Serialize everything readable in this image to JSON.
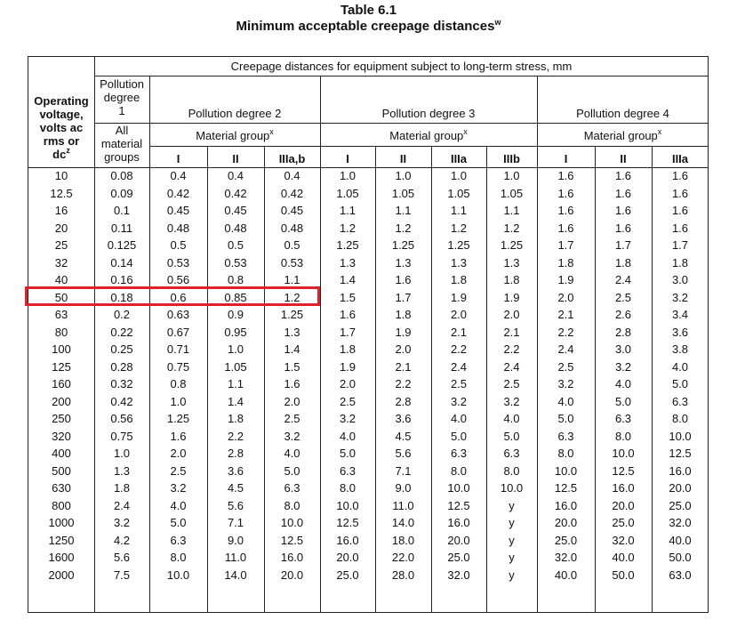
{
  "title": "Table 6.1",
  "subtitle": "Minimum acceptable creepage distances",
  "subtitle_sup": "w",
  "header": {
    "super": "Creepage distances for equipment subject to long-term stress, mm",
    "operating_voltage": [
      "Operating",
      "voltage,",
      "volts ac",
      "rms or",
      "dc"
    ],
    "operating_voltage_sup": "z",
    "pd1": [
      "Pollution",
      "degree",
      "1"
    ],
    "pd1_sub": [
      "All",
      "material",
      "groups"
    ],
    "pd2": "Pollution degree 2",
    "pd3": "Pollution degree 3",
    "pd4": "Pollution degree 4",
    "material_group": "Material group",
    "material_group_sup": "x",
    "pd2_cols": [
      "I",
      "II",
      "IIIa,b"
    ],
    "pd3_cols": [
      "I",
      "II",
      "IIIa",
      "IIIb"
    ],
    "pd4_cols": [
      "I",
      "II",
      "IIIa"
    ]
  },
  "rows": [
    [
      "10",
      "0.08",
      "0.4",
      "0.4",
      "0.4",
      "1.0",
      "1.0",
      "1.0",
      "1.0",
      "1.6",
      "1.6",
      "1.6"
    ],
    [
      "12.5",
      "0.09",
      "0.42",
      "0.42",
      "0.42",
      "1.05",
      "1.05",
      "1.05",
      "1.05",
      "1.6",
      "1.6",
      "1.6"
    ],
    [
      "16",
      "0.1",
      "0.45",
      "0.45",
      "0.45",
      "1.1",
      "1.1",
      "1.1",
      "1.1",
      "1.6",
      "1.6",
      "1.6"
    ],
    [
      "20",
      "0.11",
      "0.48",
      "0.48",
      "0.48",
      "1.2",
      "1.2",
      "1.2",
      "1.2",
      "1.6",
      "1.6",
      "1.6"
    ],
    [
      "25",
      "0.125",
      "0.5",
      "0.5",
      "0.5",
      "1.25",
      "1.25",
      "1.25",
      "1.25",
      "1.7",
      "1.7",
      "1.7"
    ],
    [
      "32",
      "0.14",
      "0.53",
      "0.53",
      "0.53",
      "1.3",
      "1.3",
      "1.3",
      "1.3",
      "1.8",
      "1.8",
      "1.8"
    ],
    [
      "40",
      "0.16",
      "0.56",
      "0.8",
      "1.1",
      "1.4",
      "1.6",
      "1.8",
      "1.8",
      "1.9",
      "2.4",
      "3.0"
    ],
    [
      "50",
      "0.18",
      "0.6",
      "0.85",
      "1.2",
      "1.5",
      "1.7",
      "1.9",
      "1.9",
      "2.0",
      "2.5",
      "3.2"
    ],
    [
      "63",
      "0.2",
      "0.63",
      "0.9",
      "1.25",
      "1.6",
      "1.8",
      "2.0",
      "2.0",
      "2.1",
      "2.6",
      "3.4"
    ],
    [
      "80",
      "0.22",
      "0.67",
      "0.95",
      "1.3",
      "1.7",
      "1.9",
      "2.1",
      "2.1",
      "2.2",
      "2.8",
      "3.6"
    ],
    [
      "100",
      "0.25",
      "0.71",
      "1.0",
      "1.4",
      "1.8",
      "2.0",
      "2.2",
      "2.2",
      "2.4",
      "3.0",
      "3.8"
    ],
    [
      "125",
      "0.28",
      "0.75",
      "1.05",
      "1.5",
      "1.9",
      "2.1",
      "2.4",
      "2.4",
      "2.5",
      "3.2",
      "4.0"
    ],
    [
      "160",
      "0.32",
      "0.8",
      "1.1",
      "1.6",
      "2.0",
      "2.2",
      "2.5",
      "2.5",
      "3.2",
      "4.0",
      "5.0"
    ],
    [
      "200",
      "0.42",
      "1.0",
      "1.4",
      "2.0",
      "2.5",
      "2.8",
      "3.2",
      "3.2",
      "4.0",
      "5.0",
      "6.3"
    ],
    [
      "250",
      "0.56",
      "1.25",
      "1.8",
      "2.5",
      "3.2",
      "3.6",
      "4.0",
      "4.0",
      "5.0",
      "6.3",
      "8.0"
    ],
    [
      "320",
      "0.75",
      "1.6",
      "2.2",
      "3.2",
      "4.0",
      "4.5",
      "5.0",
      "5.0",
      "6.3",
      "8.0",
      "10.0"
    ],
    [
      "400",
      "1.0",
      "2.0",
      "2.8",
      "4.0",
      "5.0",
      "5.6",
      "6.3",
      "6.3",
      "8.0",
      "10.0",
      "12.5"
    ],
    [
      "500",
      "1.3",
      "2.5",
      "3.6",
      "5.0",
      "6.3",
      "7.1",
      "8.0",
      "8.0",
      "10.0",
      "12.5",
      "16.0"
    ],
    [
      "630",
      "1.8",
      "3.2",
      "4.5",
      "6.3",
      "8.0",
      "9.0",
      "10.0",
      "10.0",
      "12.5",
      "16.0",
      "20.0"
    ],
    [
      "800",
      "2.4",
      "4.0",
      "5.6",
      "8.0",
      "10.0",
      "11.0",
      "12.5",
      "y",
      "16.0",
      "20.0",
      "25.0"
    ],
    [
      "1000",
      "3.2",
      "5.0",
      "7.1",
      "10.0",
      "12.5",
      "14.0",
      "16.0",
      "y",
      "20.0",
      "25.0",
      "32.0"
    ],
    [
      "1250",
      "4.2",
      "6.3",
      "9.0",
      "12.5",
      "16.0",
      "18.0",
      "20.0",
      "y",
      "25.0",
      "32.0",
      "40.0"
    ],
    [
      "1600",
      "5.6",
      "8.0",
      "11.0",
      "16.0",
      "20.0",
      "22.0",
      "25.0",
      "y",
      "32.0",
      "40.0",
      "50.0"
    ],
    [
      "2000",
      "7.5",
      "10.0",
      "14.0",
      "20.0",
      "25.0",
      "28.0",
      "32.0",
      "y",
      "40.0",
      "50.0",
      "63.0"
    ]
  ],
  "highlighted_row_voltage": "50",
  "colors": {
    "highlight": "#e0202a",
    "rule": "#222222"
  }
}
